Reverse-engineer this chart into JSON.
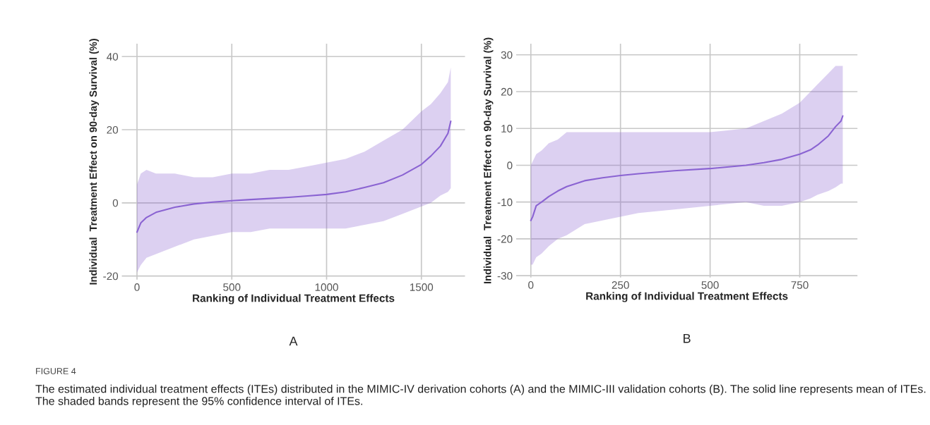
{
  "chart_data": [
    {
      "type": "line",
      "xlabel": "Ranking of Individual Treatment Effects",
      "ylabel": "Individual  Treatment Effect on 90-day Survival (%)",
      "xlim": [
        -80,
        1730
      ],
      "ylim": [
        -21,
        43.5
      ],
      "xticks": [
        0,
        500,
        1000,
        1500
      ],
      "yticks": [
        {
          "value": -20,
          "label": "-20"
        },
        0,
        20,
        40
      ],
      "grid": true,
      "series": [
        {
          "color": "#8a63d2",
          "x": [
            0,
            20,
            50,
            100,
            200,
            300,
            400,
            500,
            600,
            700,
            800,
            900,
            1000,
            1100,
            1200,
            1300,
            1400,
            1500,
            1550,
            1600,
            1640,
            1655
          ],
          "values": [
            -8,
            -5.5,
            -4,
            -2.6,
            -1.2,
            -0.3,
            0.2,
            0.6,
            0.9,
            1.2,
            1.5,
            1.9,
            2.3,
            3.0,
            4.2,
            5.5,
            7.6,
            10.5,
            12.8,
            15.5,
            19,
            22.3
          ],
          "upper": [
            5,
            8,
            9,
            8,
            8,
            7,
            7,
            8,
            8,
            9,
            9,
            10,
            11,
            12,
            14,
            17,
            20,
            25,
            27,
            30,
            33,
            37
          ],
          "lower": [
            -19,
            -17,
            -15,
            -14,
            -12,
            -10,
            -9,
            -8,
            -8,
            -7,
            -7,
            -7,
            -7,
            -7,
            -6,
            -5,
            -3,
            -1,
            0,
            2,
            3,
            4
          ]
        }
      ],
      "annotations": [
        "A",
        "FIGURE 4",
        "The estimated individual treatment effects (ITEs) distributed in the MIMIC-IV derivation cohorts (A) and the MIMIC-III validation cohorts (B). The solid line represents mean of ITEs. The shaded bands represent the 95% confidence interval of ITEs."
      ]
    },
    {
      "type": "line",
      "xlabel": "Ranking of Individual Treatment Effects",
      "ylabel": "Individual  Treatment Effect on 90-day Survival (%)",
      "xlim": [
        -41,
        911
      ],
      "ylim": [
        -30.5,
        33
      ],
      "xticks": [
        0,
        250,
        500,
        750
      ],
      "yticks": [
        {
          "value": -30,
          "label": "-30"
        },
        {
          "value": -20,
          "label": "-20"
        },
        {
          "value": -10,
          "label": "-10"
        },
        0,
        10,
        20,
        30
      ],
      "grid": true,
      "series": [
        {
          "color": "#8a63d2",
          "x": [
            0,
            5,
            15,
            30,
            50,
            75,
            100,
            150,
            200,
            250,
            300,
            400,
            500,
            600,
            650,
            700,
            750,
            780,
            800,
            830,
            850,
            865,
            870
          ],
          "values": [
            -15,
            -14,
            -11,
            -10,
            -8.5,
            -7,
            -5.8,
            -4.2,
            -3.4,
            -2.8,
            -2.3,
            -1.5,
            -0.9,
            0,
            0.7,
            1.6,
            3.0,
            4.2,
            5.5,
            8,
            10.5,
            12,
            13.4
          ],
          "upper": [
            0,
            1,
            3,
            4,
            6,
            7,
            9,
            9,
            9,
            9,
            9,
            9,
            9,
            10,
            12,
            14,
            17,
            20,
            22,
            25,
            27,
            27,
            27
          ],
          "lower": [
            -27,
            -27,
            -25,
            -24,
            -22,
            -20,
            -19,
            -16,
            -15,
            -14,
            -13,
            -12,
            -11,
            -10,
            -11,
            -11,
            -10,
            -9,
            -8,
            -7,
            -6,
            -5,
            -5
          ]
        }
      ],
      "annotations": [
        "B"
      ]
    }
  ]
}
